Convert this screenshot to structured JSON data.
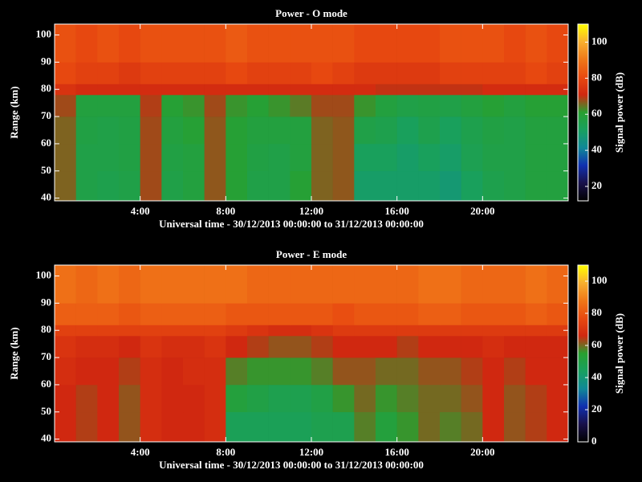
{
  "chart_data": [
    {
      "type": "heatmap",
      "title": "Power - O mode",
      "xlabel": "Universal time - 30/12/2013 00:00:00 to 31/12/2013 00:00:00",
      "ylabel": "Range (km)",
      "x_edges": [
        0,
        1,
        2,
        3,
        4,
        5,
        6,
        7,
        8,
        9,
        10,
        11,
        12,
        13,
        14,
        15,
        16,
        17,
        18,
        19,
        20,
        21,
        22,
        23,
        24
      ],
      "y_edges": [
        39,
        50,
        60,
        70,
        78,
        82,
        90,
        104
      ],
      "values": [
        [
          66,
          56,
          55,
          56,
          68,
          56,
          58,
          67,
          60,
          56,
          56,
          60,
          66,
          67,
          50,
          50,
          50,
          50,
          48,
          52,
          55,
          56,
          58,
          58
        ],
        [
          66,
          56,
          56,
          57,
          68,
          57,
          58,
          67,
          60,
          57,
          56,
          58,
          66,
          67,
          52,
          52,
          50,
          52,
          50,
          54,
          56,
          56,
          58,
          58
        ],
        [
          66,
          57,
          56,
          57,
          68,
          58,
          60,
          67,
          60,
          58,
          58,
          58,
          66,
          67,
          56,
          55,
          52,
          55,
          52,
          55,
          57,
          56,
          58,
          58
        ],
        [
          68,
          58,
          58,
          58,
          69,
          60,
          62,
          68,
          62,
          60,
          62,
          64,
          68,
          68,
          62,
          58,
          56,
          57,
          56,
          58,
          60,
          58,
          60,
          60
        ],
        [
          74,
          72,
          72,
          72,
          72,
          72,
          72,
          72,
          72,
          72,
          72,
          72,
          72,
          72,
          72,
          70,
          70,
          70,
          70,
          70,
          72,
          72,
          72,
          72
        ],
        [
          80,
          78,
          78,
          76,
          78,
          78,
          78,
          78,
          80,
          78,
          78,
          78,
          80,
          78,
          76,
          76,
          76,
          76,
          78,
          78,
          78,
          78,
          80,
          78
        ],
        [
          82,
          80,
          82,
          80,
          82,
          82,
          82,
          82,
          84,
          82,
          82,
          82,
          82,
          82,
          80,
          80,
          80,
          80,
          82,
          82,
          82,
          80,
          82,
          80
        ]
      ],
      "xlim": [
        0,
        24
      ],
      "ylim": [
        39,
        104
      ],
      "xticks": [
        {
          "value": 4,
          "label": "4:00"
        },
        {
          "value": 8,
          "label": "8:00"
        },
        {
          "value": 12,
          "label": "12:00"
        },
        {
          "value": 16,
          "label": "16:00"
        },
        {
          "value": 20,
          "label": "20:00"
        }
      ],
      "yticks": [
        40,
        50,
        60,
        70,
        80,
        90,
        100
      ],
      "colorbar": {
        "label": "Signal power (dB)",
        "lim": [
          12,
          110
        ],
        "ticks": [
          20,
          40,
          60,
          80,
          100
        ]
      },
      "colorscale": [
        "#000000",
        "#18104a",
        "#1030b0",
        "#108898",
        "#18a060",
        "#28a030",
        "#d02810",
        "#e84a10",
        "#f07818",
        "#f8b030",
        "#ffff00"
      ]
    },
    {
      "type": "heatmap",
      "title": "Power - E mode",
      "xlabel": "Universal time - 30/12/2013 00:00:00 to 31/12/2013 00:00:00",
      "ylabel": "Range (km)",
      "x_edges": [
        0,
        1,
        2,
        3,
        4,
        5,
        6,
        7,
        8,
        9,
        10,
        11,
        12,
        13,
        14,
        15,
        16,
        17,
        18,
        19,
        20,
        21,
        22,
        23,
        24
      ],
      "y_edges": [
        39,
        50,
        60,
        70,
        78,
        82,
        90,
        104
      ],
      "values": [
        [
          66,
          64,
          66,
          62,
          68,
          66,
          66,
          68,
          46,
          46,
          46,
          46,
          48,
          48,
          58,
          52,
          56,
          60,
          58,
          60,
          66,
          62,
          64,
          66
        ],
        [
          66,
          64,
          66,
          62,
          68,
          66,
          66,
          68,
          52,
          50,
          48,
          48,
          50,
          56,
          60,
          56,
          58,
          60,
          60,
          62,
          66,
          62,
          64,
          66
        ],
        [
          68,
          66,
          66,
          64,
          68,
          66,
          68,
          68,
          58,
          56,
          56,
          56,
          58,
          62,
          62,
          60,
          60,
          62,
          62,
          64,
          66,
          64,
          66,
          66
        ],
        [
          70,
          68,
          68,
          66,
          70,
          68,
          68,
          70,
          66,
          64,
          62,
          62,
          64,
          66,
          66,
          66,
          64,
          66,
          66,
          66,
          68,
          66,
          66,
          66
        ],
        [
          74,
          74,
          74,
          74,
          74,
          74,
          74,
          74,
          72,
          70,
          68,
          68,
          70,
          72,
          72,
          72,
          72,
          72,
          72,
          72,
          72,
          72,
          72,
          72
        ],
        [
          82,
          82,
          82,
          80,
          82,
          82,
          82,
          82,
          80,
          80,
          80,
          80,
          80,
          78,
          80,
          80,
          80,
          82,
          82,
          80,
          80,
          80,
          82,
          80
        ],
        [
          86,
          84,
          86,
          84,
          86,
          86,
          86,
          86,
          86,
          84,
          84,
          84,
          84,
          84,
          84,
          84,
          84,
          86,
          86,
          84,
          84,
          84,
          86,
          84
        ]
      ],
      "xlim": [
        0,
        24
      ],
      "ylim": [
        39,
        104
      ],
      "xticks": [
        {
          "value": 4,
          "label": "4:00"
        },
        {
          "value": 8,
          "label": "8:00"
        },
        {
          "value": 12,
          "label": "12:00"
        },
        {
          "value": 16,
          "label": "16:00"
        },
        {
          "value": 20,
          "label": "20:00"
        }
      ],
      "yticks": [
        40,
        50,
        60,
        70,
        80,
        90,
        100
      ],
      "colorbar": {
        "label": "Signal power (dB)",
        "lim": [
          0,
          110
        ],
        "ticks": [
          0,
          20,
          40,
          60,
          80,
          100
        ]
      },
      "colorscale": [
        "#000000",
        "#18104a",
        "#1030b0",
        "#108898",
        "#18a060",
        "#28a030",
        "#d02810",
        "#e84a10",
        "#f07818",
        "#f8b030",
        "#ffff00"
      ]
    }
  ]
}
